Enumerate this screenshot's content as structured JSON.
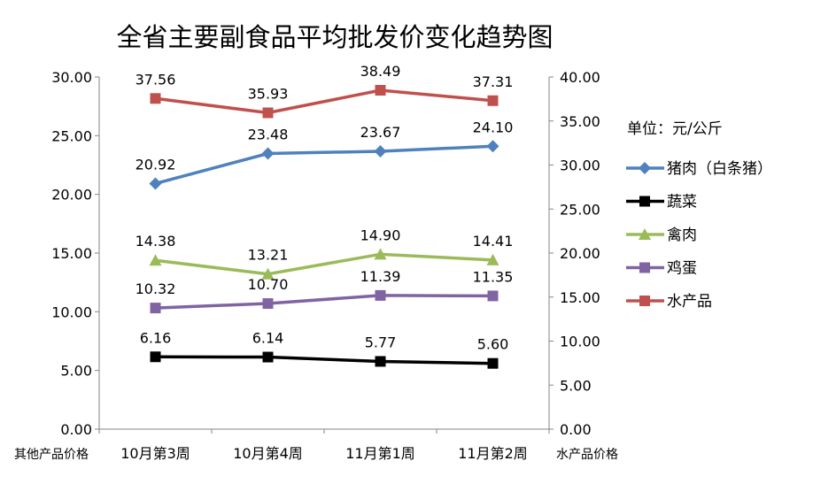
{
  "chart_data": {
    "type": "line",
    "title": "全省主要副食品平均批发价变化趋势图",
    "unit_label": "单位：元/公斤",
    "left_axis_label": "其他产品价格",
    "right_axis_label": "水产品价格",
    "categories": [
      "10月第3周",
      "10月第4周",
      "11月第1周",
      "11月第2周"
    ],
    "ylim_left": [
      0,
      30
    ],
    "ylim_right": [
      0,
      40
    ],
    "left_ticks": [
      "0.00",
      "5.00",
      "10.00",
      "15.00",
      "20.00",
      "25.00",
      "30.00"
    ],
    "right_ticks": [
      "0.00",
      "5.00",
      "10.00",
      "15.00",
      "20.00",
      "25.00",
      "30.00",
      "35.00",
      "40.00"
    ],
    "grid": false,
    "legend_position": "right",
    "series": [
      {
        "name": "猪肉（白条猪）",
        "values": [
          20.92,
          23.48,
          23.67,
          24.1
        ],
        "labels": [
          "20.92",
          "23.48",
          "23.67",
          "24.10"
        ],
        "color": "#4F81BD",
        "marker": "diamond",
        "axis": "left"
      },
      {
        "name": "蔬菜",
        "values": [
          6.16,
          6.14,
          5.77,
          5.6
        ],
        "labels": [
          "6.16",
          "6.14",
          "5.77",
          "5.60"
        ],
        "color": "#000000",
        "marker": "square",
        "axis": "left"
      },
      {
        "name": "禽肉",
        "values": [
          14.38,
          13.21,
          14.9,
          14.41
        ],
        "labels": [
          "14.38",
          "13.21",
          "14.90",
          "14.41"
        ],
        "color": "#9BBB59",
        "marker": "triangle",
        "axis": "left"
      },
      {
        "name": "鸡蛋",
        "values": [
          10.32,
          10.7,
          11.39,
          11.35
        ],
        "labels": [
          "10.32",
          "10.70",
          "11.39",
          "11.35"
        ],
        "color": "#8064A2",
        "marker": "square",
        "axis": "left"
      },
      {
        "name": "水产品",
        "values": [
          37.56,
          35.93,
          38.49,
          37.31
        ],
        "labels": [
          "37.56",
          "35.93",
          "38.49",
          "37.31"
        ],
        "color": "#C0504D",
        "marker": "square",
        "axis": "right"
      }
    ]
  }
}
